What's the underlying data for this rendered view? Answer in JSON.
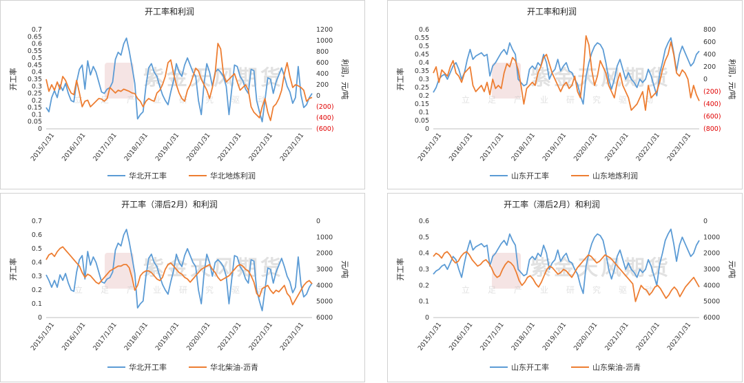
{
  "watermark": {
    "title": "紫金天风期货",
    "subtitle": "立足产业研究驱动"
  },
  "chart_data": [
    {
      "type": "line",
      "title": "开工率和利润",
      "ylabel_left": "开工率",
      "ylabel_right": "利润，元/吨",
      "ylim_left": [
        0,
        0.7
      ],
      "ylim_right": [
        -600,
        1200
      ],
      "ticks_left": [
        "0",
        "0.05",
        "0.1",
        "0.15",
        "0.2",
        "0.25",
        "0.3",
        "0.35",
        "0.4",
        "0.45",
        "0.5",
        "0.55",
        "0.6",
        "0.65",
        "0.7"
      ],
      "ticks_right": [
        "(600)",
        "(400)",
        "(200)",
        "0",
        "200",
        "400",
        "600",
        "800",
        "1000",
        "1200"
      ],
      "xticks": [
        "2015/1/31",
        "2016/1/31",
        "2017/1/31",
        "2018/1/31",
        "2019/1/31",
        "2020/1/31",
        "2021/1/31",
        "2022/1/31",
        "2023/1/31"
      ],
      "series": [
        {
          "name": "华北开工率",
          "axis": "left",
          "color": "#5b9bd5",
          "values": [
            0.15,
            0.12,
            0.22,
            0.27,
            0.22,
            0.31,
            0.27,
            0.32,
            0.25,
            0.2,
            0.19,
            0.33,
            0.42,
            0.45,
            0.28,
            0.48,
            0.38,
            0.44,
            0.4,
            0.33,
            0.26,
            0.25,
            0.28,
            0.29,
            0.33,
            0.49,
            0.54,
            0.52,
            0.6,
            0.64,
            0.55,
            0.44,
            0.32,
            0.07,
            0.1,
            0.12,
            0.3,
            0.43,
            0.46,
            0.4,
            0.37,
            0.3,
            0.24,
            0.2,
            0.17,
            0.26,
            0.34,
            0.46,
            0.4,
            0.37,
            0.45,
            0.5,
            0.45,
            0.4,
            0.37,
            0.2,
            0.1,
            0.32,
            0.46,
            0.4,
            0.3,
            0.4,
            0.42,
            0.4,
            0.37,
            0.3,
            0.1,
            0.28,
            0.45,
            0.44,
            0.37,
            0.34,
            0.28,
            0.25,
            0.42,
            0.41,
            0.2,
            0.12,
            0.05,
            0.2,
            0.36,
            0.35,
            0.25,
            0.33,
            0.38,
            0.43,
            0.37,
            0.3,
            0.26,
            0.18,
            0.22,
            0.44,
            0.24,
            0.15,
            0.17,
            0.22,
            0.25
          ]
        },
        {
          "name": "华北地炼利润",
          "axis": "right",
          "color": "#ed7d31",
          "values": [
            300,
            80,
            200,
            100,
            250,
            120,
            350,
            280,
            150,
            50,
            20,
            280,
            50,
            -200,
            -100,
            -80,
            -200,
            -150,
            -100,
            -50,
            -60,
            -100,
            -50,
            150,
            100,
            50,
            100,
            80,
            120,
            100,
            80,
            50,
            40,
            -50,
            -100,
            -200,
            -100,
            -50,
            -80,
            -100,
            50,
            100,
            200,
            350,
            600,
            650,
            400,
            200,
            50,
            -50,
            -100,
            100,
            200,
            350,
            500,
            450,
            300,
            200,
            100,
            -50,
            150,
            400,
            950,
            850,
            400,
            250,
            300,
            350,
            400,
            250,
            100,
            150,
            200,
            100,
            -200,
            -300,
            -350,
            -400,
            -200,
            -50,
            -300,
            -450,
            -200,
            -150,
            -50,
            100,
            400,
            600,
            350,
            150,
            200,
            180,
            150,
            100,
            -100,
            -50,
            -30
          ]
        }
      ],
      "legend": [
        "华北开工率",
        "华北地炼利润"
      ]
    },
    {
      "type": "line",
      "title": "开工率和利润",
      "ylabel_left": "开工率",
      "ylabel_right": "利润，元/吨",
      "ylim_left": [
        0,
        0.6
      ],
      "ylim_right": [
        -800,
        800
      ],
      "ticks_left": [
        "0",
        "0.05",
        "0.1",
        "0.15",
        "0.2",
        "0.25",
        "0.3",
        "0.35",
        "0.4",
        "0.45",
        "0.5",
        "0.55",
        "0.6"
      ],
      "ticks_right": [
        "(800)",
        "(600)",
        "(400)",
        "(200)",
        "0",
        "200",
        "400",
        "600",
        "800"
      ],
      "xticks": [
        "2015/1/31",
        "2016/1/31",
        "2017/1/31",
        "2018/1/31",
        "2019/1/31",
        "2020/1/31",
        "2021/1/31",
        "2022/1/31",
        "2023/1/31"
      ],
      "series": [
        {
          "name": "山东开工率",
          "axis": "left",
          "color": "#5b9bd5",
          "values": [
            0.22,
            0.25,
            0.3,
            0.32,
            0.33,
            0.3,
            0.34,
            0.38,
            0.4,
            0.36,
            0.3,
            0.34,
            0.42,
            0.48,
            0.42,
            0.44,
            0.45,
            0.46,
            0.44,
            0.45,
            0.32,
            0.38,
            0.4,
            0.43,
            0.46,
            0.48,
            0.45,
            0.52,
            0.48,
            0.45,
            0.3,
            0.28,
            0.26,
            0.27,
            0.36,
            0.38,
            0.36,
            0.4,
            0.38,
            0.45,
            0.4,
            0.3,
            0.34,
            0.36,
            0.42,
            0.35,
            0.38,
            0.4,
            0.35,
            0.34,
            0.3,
            0.27,
            0.2,
            0.15,
            0.32,
            0.4,
            0.46,
            0.5,
            0.52,
            0.51,
            0.48,
            0.4,
            0.3,
            0.24,
            0.3,
            0.38,
            0.42,
            0.36,
            0.3,
            0.34,
            0.3,
            0.28,
            0.25,
            0.3,
            0.28,
            0.3,
            0.36,
            0.32,
            0.26,
            0.2,
            0.33,
            0.4,
            0.48,
            0.52,
            0.55,
            0.46,
            0.35,
            0.45,
            0.5,
            0.46,
            0.42,
            0.38,
            0.4,
            0.45,
            0.47
          ]
        },
        {
          "name": "山东地炼利润",
          "axis": "right",
          "color": "#ed7d31",
          "values": [
            100,
            200,
            -50,
            150,
            100,
            50,
            200,
            300,
            100,
            50,
            -50,
            100,
            150,
            200,
            -100,
            -200,
            -150,
            -100,
            -200,
            -50,
            -250,
            0,
            -150,
            -100,
            -150,
            100,
            250,
            200,
            350,
            300,
            150,
            -100,
            -400,
            -150,
            -100,
            -50,
            -100,
            100,
            200,
            350,
            400,
            250,
            100,
            0,
            -100,
            -200,
            -100,
            -50,
            -150,
            -100,
            50,
            -200,
            -300,
            100,
            700,
            550,
            150,
            -100,
            50,
            300,
            200,
            100,
            -100,
            -200,
            -300,
            -50,
            100,
            -100,
            -200,
            -300,
            -500,
            -450,
            -400,
            -300,
            -200,
            -500,
            -100,
            -300,
            -250,
            -200,
            -50,
            150,
            300,
            400,
            600,
            400,
            100,
            50,
            150,
            100,
            0,
            -300,
            -100,
            -250,
            -350
          ]
        }
      ],
      "legend": [
        "山东开工率",
        "山东地炼利润"
      ]
    },
    {
      "type": "line",
      "title": "开工率（滞后2月）和利润",
      "ylabel_left": "开工率",
      "ylabel_right": "元/吨",
      "ylim_left": [
        0,
        0.7
      ],
      "ylim_right": [
        6000,
        0
      ],
      "right_inverted": true,
      "ticks_left": [
        "0",
        "0.1",
        "0.2",
        "0.3",
        "0.4",
        "0.5",
        "0.6",
        "0.7"
      ],
      "ticks_right": [
        "6000",
        "5000",
        "4000",
        "3000",
        "2000",
        "1000",
        "0"
      ],
      "xticks": [
        "2015/1/31",
        "2016/1/31",
        "2017/1/31",
        "2018/1/31",
        "2019/1/31",
        "2020/1/31",
        "2021/1/31",
        "2022/1/31",
        "2023/1/31"
      ],
      "series": [
        {
          "name": "华北开工率",
          "axis": "left",
          "color": "#5b9bd5",
          "values": [
            0.31,
            0.27,
            0.22,
            0.27,
            0.22,
            0.31,
            0.27,
            0.32,
            0.25,
            0.2,
            0.19,
            0.33,
            0.42,
            0.45,
            0.28,
            0.48,
            0.38,
            0.44,
            0.4,
            0.33,
            0.26,
            0.25,
            0.28,
            0.29,
            0.33,
            0.49,
            0.54,
            0.52,
            0.6,
            0.64,
            0.55,
            0.44,
            0.32,
            0.07,
            0.1,
            0.12,
            0.3,
            0.43,
            0.46,
            0.4,
            0.37,
            0.3,
            0.24,
            0.2,
            0.17,
            0.26,
            0.34,
            0.46,
            0.4,
            0.37,
            0.45,
            0.5,
            0.45,
            0.4,
            0.37,
            0.2,
            0.1,
            0.32,
            0.46,
            0.4,
            0.3,
            0.4,
            0.42,
            0.4,
            0.37,
            0.3,
            0.1,
            0.28,
            0.45,
            0.44,
            0.37,
            0.34,
            0.28,
            0.25,
            0.42,
            0.41,
            0.2,
            0.12,
            0.05,
            0.2,
            0.36,
            0.35,
            0.25,
            0.33,
            0.38,
            0.43,
            0.37,
            0.3,
            0.26,
            0.18,
            0.22,
            0.44,
            0.24,
            0.15,
            0.17,
            0.22,
            0.25
          ]
        },
        {
          "name": "华北柴油-沥青",
          "axis": "right",
          "color": "#ed7d31",
          "values": [
            2400,
            2100,
            2000,
            2200,
            1900,
            1700,
            1600,
            1800,
            2000,
            2200,
            2400,
            2600,
            2800,
            3200,
            3500,
            3300,
            3400,
            3600,
            3800,
            3900,
            3700,
            3500,
            3300,
            3100,
            3000,
            2900,
            2800,
            2800,
            2700,
            2700,
            2900,
            3500,
            4300,
            4000,
            3400,
            3200,
            3100,
            3100,
            3200,
            3400,
            3600,
            3700,
            3500,
            3000,
            2700,
            2600,
            2800,
            3000,
            3200,
            3300,
            3500,
            3600,
            3800,
            3600,
            3400,
            3200,
            3000,
            2900,
            2800,
            2700,
            3000,
            3200,
            3500,
            3700,
            3600,
            3500,
            3400,
            3200,
            3000,
            2800,
            2700,
            2800,
            3000,
            3100,
            3400,
            3800,
            4500,
            4700,
            4200,
            4100,
            4000,
            4300,
            4500,
            4300,
            4400,
            4200,
            4000,
            4500,
            4700,
            5200,
            4900,
            4600,
            4300,
            4000,
            3800,
            3700,
            3900
          ]
        }
      ],
      "legend": [
        "华北开工率",
        "华北柴油-沥青"
      ]
    },
    {
      "type": "line",
      "title": "开工率（滞后2月）和利润",
      "ylabel_left": "开工率",
      "ylabel_right": "元/吨",
      "ylim_left": [
        0,
        0.6
      ],
      "ylim_right": [
        6000,
        0
      ],
      "right_inverted": true,
      "ticks_left": [
        "0",
        "0.1",
        "0.2",
        "0.3",
        "0.4",
        "0.5",
        "0.6"
      ],
      "ticks_right": [
        "6000",
        "5000",
        "4000",
        "3000",
        "2000",
        "1000",
        "0"
      ],
      "xticks": [
        "2015/1/31",
        "2016/1/31",
        "2017/1/31",
        "2018/1/31",
        "2019/1/31",
        "2020/1/31",
        "2021/1/31",
        "2022/1/31",
        "2023/1/31"
      ],
      "series": [
        {
          "name": "山东开工率",
          "axis": "left",
          "color": "#5b9bd5",
          "values": [
            0.27,
            0.29,
            0.3,
            0.32,
            0.33,
            0.3,
            0.34,
            0.38,
            0.36,
            0.3,
            0.25,
            0.34,
            0.42,
            0.48,
            0.42,
            0.44,
            0.45,
            0.46,
            0.44,
            0.45,
            0.32,
            0.38,
            0.4,
            0.43,
            0.46,
            0.48,
            0.45,
            0.52,
            0.48,
            0.45,
            0.3,
            0.28,
            0.26,
            0.27,
            0.36,
            0.38,
            0.36,
            0.4,
            0.38,
            0.45,
            0.4,
            0.3,
            0.34,
            0.36,
            0.42,
            0.35,
            0.38,
            0.4,
            0.35,
            0.34,
            0.3,
            0.27,
            0.2,
            0.15,
            0.32,
            0.4,
            0.46,
            0.5,
            0.52,
            0.51,
            0.48,
            0.4,
            0.3,
            0.24,
            0.3,
            0.38,
            0.42,
            0.36,
            0.3,
            0.34,
            0.3,
            0.28,
            0.25,
            0.3,
            0.28,
            0.3,
            0.36,
            0.32,
            0.26,
            0.2,
            0.33,
            0.4,
            0.48,
            0.52,
            0.55,
            0.46,
            0.35,
            0.45,
            0.5,
            0.46,
            0.42,
            0.38,
            0.4,
            0.45,
            0.48
          ]
        },
        {
          "name": "山东柴油-沥青",
          "axis": "right",
          "color": "#ed7d31",
          "values": [
            2200,
            2000,
            2100,
            2300,
            2000,
            1900,
            2100,
            2400,
            2600,
            2500,
            2200,
            2000,
            1900,
            2100,
            2400,
            2600,
            2800,
            2700,
            2500,
            2400,
            2600,
            2900,
            3300,
            3500,
            3400,
            3000,
            2700,
            2500,
            2600,
            2800,
            3200,
            3700,
            4000,
            3800,
            3500,
            3400,
            3600,
            3900,
            4100,
            3800,
            3400,
            3000,
            2800,
            2900,
            3100,
            3300,
            3200,
            3000,
            3100,
            3300,
            3500,
            3200,
            2900,
            2700,
            2500,
            2300,
            2100,
            2200,
            2400,
            2600,
            2500,
            2300,
            2100,
            2200,
            2300,
            2500,
            2700,
            2900,
            3100,
            3300,
            3500,
            3700,
            3900,
            5000,
            4500,
            4000,
            4200,
            4300,
            4600,
            4400,
            4100,
            4000,
            4200,
            4500,
            4800,
            4600,
            4300,
            4100,
            4300,
            4700,
            4400,
            4100,
            3900,
            3700,
            3500,
            3800,
            4100
          ]
        }
      ],
      "legend": [
        "山东开工率",
        "山东柴油-沥青"
      ]
    }
  ]
}
